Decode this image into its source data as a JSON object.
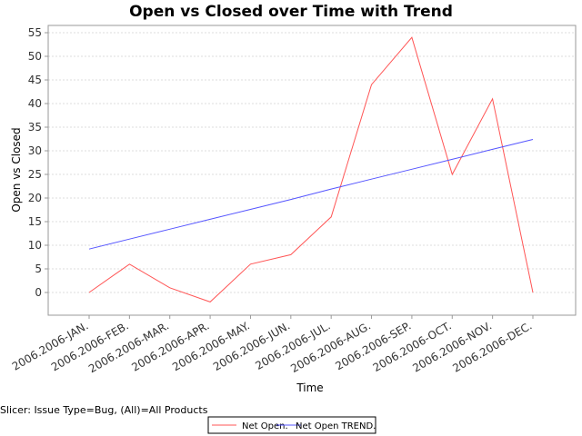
{
  "chart_data": {
    "type": "line",
    "title": "Open vs Closed over Time with Trend",
    "xlabel": "Time",
    "ylabel": "Open vs Closed",
    "categories": [
      "2006.2006-JAN.",
      "2006.2006-FEB.",
      "2006.2006-MAR.",
      "2006.2006-APR.",
      "2006.2006-MAY.",
      "2006.2006-JUN.",
      "2006.2006-JUL.",
      "2006.2006-AUG.",
      "2006.2006-SEP.",
      "2006.2006-OCT.",
      "2006.2006-NOV.",
      "2006.2006-DEC."
    ],
    "series": [
      {
        "name": "Net Open.",
        "color": "#ff5555",
        "values": [
          0,
          6,
          1,
          -2,
          6,
          8,
          16,
          44,
          54,
          25,
          41,
          0
        ]
      },
      {
        "name": "Net Open TREND.",
        "color": "#5555ff",
        "values": [
          9.2,
          11.3,
          13.4,
          15.5,
          17.6,
          19.7,
          21.9,
          24.0,
          26.1,
          28.2,
          30.3,
          32.4
        ]
      }
    ],
    "ylim": [
      -5,
      57
    ],
    "yticks": [
      0,
      5,
      10,
      15,
      20,
      25,
      30,
      35,
      40,
      45,
      50,
      55
    ],
    "grid": true,
    "legend_position": "bottom-center"
  },
  "slicer_text": "Slicer: Issue Type=Bug, (All)=All Products"
}
